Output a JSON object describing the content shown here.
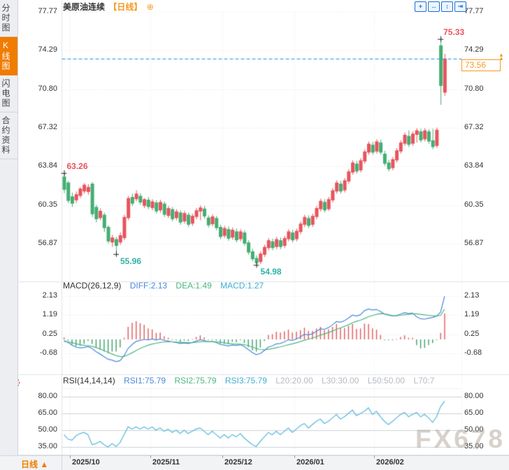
{
  "header": {
    "symbol": "美原油连续",
    "period_tag": "【日线】",
    "add_icon": "⊕"
  },
  "sidebar": {
    "tabs": [
      {
        "label": "分时图",
        "active": false
      },
      {
        "label": "K线图",
        "active": true
      },
      {
        "label": "闪电图",
        "active": false
      },
      {
        "label": "合约资料",
        "active": false
      }
    ]
  },
  "toolbar": {
    "buttons": [
      {
        "name": "pan",
        "glyph": "+"
      },
      {
        "name": "zoom-x",
        "glyph": "↔"
      },
      {
        "name": "zoom-y",
        "glyph": "↕"
      },
      {
        "name": "collapse-panel",
        "glyph": "⇥"
      }
    ]
  },
  "bottom_bar": {
    "period_label": "日线",
    "period_arrow": "▲"
  },
  "watermark": "FX678",
  "price_tag": {
    "value": "73.56",
    "arrows": "▲▲"
  },
  "macd_header": {
    "name": "MACD(26,12,9)",
    "diff": "DIFF:2.13",
    "dea": "DEA:1.49",
    "macd": "MACD:1.27"
  },
  "rsi_header": {
    "name": "RSI(14,14,14)",
    "rsi1": "RSI1:75.79",
    "rsi2": "RSI2:75.79",
    "rsi3": "RSI3:75.79",
    "l20": "L20:20.00",
    "l30": "L30:30.00",
    "l50": "L50:50.00",
    "l70": "L70:7"
  },
  "colors": {
    "up": "#e8545c",
    "down": "#43ae73",
    "accent_orange": "#f59a23",
    "diff_line": "#4a89dc",
    "dea_line": "#4cb581",
    "rsi_line": "#54b7dc",
    "price_line": "#2b8fe3",
    "grid": "#e3e6ea",
    "separator": "#dfe2e7",
    "hist_up": "#e05a5a",
    "hist_down": "#3ca06a",
    "ann_high": "#e8545c",
    "ann_low": "#2eb3a6"
  },
  "chart_data": [
    {
      "type": "candlestick",
      "title": "美原油连续 日线",
      "y_ticks": [
        "77.77",
        "74.29",
        "70.80",
        "67.32",
        "63.84",
        "60.35",
        "56.87"
      ],
      "y_tick_values": [
        77.77,
        74.29,
        70.8,
        67.32,
        63.84,
        60.35,
        56.87
      ],
      "x_ticks": [
        {
          "label": "2025/10",
          "idx": 2
        },
        {
          "label": "2025/11",
          "idx": 22
        },
        {
          "label": "2025/12",
          "idx": 40
        },
        {
          "label": "2026/01",
          "idx": 58
        },
        {
          "label": "2026/02",
          "idx": 78
        }
      ],
      "last_price": 73.56,
      "annotations": [
        {
          "text": "63.26",
          "idx": 0,
          "price": 63.26,
          "pos": "above-right",
          "color": "ann_high"
        },
        {
          "text": "75.33",
          "idx": 94,
          "price": 75.33,
          "pos": "above-right",
          "color": "ann_high"
        },
        {
          "text": "55.96",
          "idx": 13,
          "price": 55.96,
          "pos": "below-right",
          "color": "ann_low"
        },
        {
          "text": "54.98",
          "idx": 48,
          "price": 54.98,
          "pos": "below-right",
          "color": "ann_low"
        }
      ],
      "candles": [
        [
          62.95,
          63.26,
          61.45,
          61.75
        ],
        [
          62.4,
          62.55,
          60.55,
          60.75
        ],
        [
          61.15,
          61.5,
          60.2,
          60.5
        ],
        [
          60.8,
          61.6,
          60.55,
          61.35
        ],
        [
          61.2,
          62.0,
          61.0,
          61.85
        ],
        [
          61.6,
          62.35,
          61.4,
          62.2
        ],
        [
          61.55,
          62.25,
          61.3,
          62.0
        ],
        [
          62.3,
          62.45,
          59.3,
          59.55
        ],
        [
          60.2,
          60.4,
          58.8,
          59.1
        ],
        [
          59.2,
          60.05,
          59.0,
          59.85
        ],
        [
          59.5,
          59.7,
          57.95,
          58.3
        ],
        [
          58.4,
          58.55,
          56.9,
          57.1
        ],
        [
          57.0,
          57.7,
          56.6,
          57.45
        ],
        [
          57.3,
          57.5,
          55.96,
          56.7
        ],
        [
          57.0,
          57.9,
          56.8,
          57.65
        ],
        [
          57.4,
          59.5,
          57.2,
          59.3
        ],
        [
          59.2,
          61.2,
          59.0,
          61.0
        ],
        [
          61.1,
          61.4,
          60.3,
          60.5
        ],
        [
          60.9,
          61.7,
          60.7,
          61.4
        ],
        [
          61.2,
          61.45,
          60.4,
          60.6
        ],
        [
          60.3,
          61.0,
          60.1,
          60.9
        ],
        [
          60.85,
          61.1,
          60.0,
          60.2
        ],
        [
          60.1,
          60.9,
          59.9,
          60.7
        ],
        [
          60.6,
          60.8,
          59.6,
          59.8
        ],
        [
          59.9,
          60.85,
          59.7,
          60.65
        ],
        [
          60.5,
          60.7,
          59.3,
          59.5
        ],
        [
          59.4,
          60.3,
          59.2,
          60.1
        ],
        [
          60.0,
          60.2,
          58.9,
          59.1
        ],
        [
          59.2,
          60.0,
          59.0,
          59.8
        ],
        [
          59.7,
          59.9,
          58.6,
          58.8
        ],
        [
          58.9,
          59.85,
          58.7,
          59.65
        ],
        [
          59.5,
          59.7,
          58.4,
          58.6
        ],
        [
          58.7,
          59.6,
          58.5,
          59.4
        ],
        [
          59.3,
          60.1,
          59.1,
          59.9
        ],
        [
          59.8,
          60.35,
          59.0,
          60.15
        ],
        [
          60.05,
          60.3,
          59.15,
          59.35
        ],
        [
          59.25,
          59.45,
          58.35,
          58.55
        ],
        [
          58.65,
          59.55,
          58.45,
          59.35
        ],
        [
          59.2,
          59.4,
          58.1,
          58.3
        ],
        [
          58.4,
          58.6,
          57.3,
          57.5
        ],
        [
          57.6,
          58.5,
          57.4,
          58.3
        ],
        [
          58.2,
          58.45,
          57.15,
          57.35
        ],
        [
          57.45,
          58.35,
          57.25,
          58.15
        ],
        [
          58.0,
          58.25,
          57.0,
          57.2
        ],
        [
          57.3,
          58.2,
          57.1,
          58.0
        ],
        [
          57.9,
          58.1,
          56.7,
          56.9
        ],
        [
          57.0,
          57.2,
          55.9,
          56.1
        ],
        [
          56.2,
          56.45,
          55.3,
          55.5
        ],
        [
          55.6,
          55.85,
          54.98,
          55.15
        ],
        [
          55.25,
          56.2,
          55.05,
          56.0
        ],
        [
          55.9,
          56.8,
          55.7,
          56.6
        ],
        [
          56.5,
          57.4,
          56.3,
          57.2
        ],
        [
          57.1,
          57.35,
          56.3,
          56.5
        ],
        [
          56.6,
          57.5,
          56.4,
          57.3
        ],
        [
          57.2,
          57.45,
          56.4,
          56.6
        ],
        [
          56.7,
          57.6,
          56.5,
          57.4
        ],
        [
          57.3,
          58.2,
          57.1,
          58.0
        ],
        [
          57.9,
          58.15,
          57.0,
          57.2
        ],
        [
          57.3,
          58.25,
          57.1,
          58.05
        ],
        [
          57.95,
          58.9,
          57.75,
          58.7
        ],
        [
          58.6,
          59.5,
          58.4,
          59.3
        ],
        [
          59.2,
          59.45,
          58.3,
          58.5
        ],
        [
          58.6,
          59.6,
          58.4,
          59.4
        ],
        [
          59.3,
          60.3,
          59.1,
          60.1
        ],
        [
          60.0,
          60.95,
          59.8,
          60.75
        ],
        [
          60.65,
          60.9,
          59.7,
          59.9
        ],
        [
          60.0,
          61.1,
          59.85,
          60.9
        ],
        [
          60.8,
          61.9,
          60.6,
          61.7
        ],
        [
          61.6,
          62.6,
          61.4,
          62.4
        ],
        [
          62.3,
          62.55,
          61.4,
          61.6
        ],
        [
          61.7,
          62.8,
          61.5,
          62.6
        ],
        [
          62.5,
          63.6,
          62.3,
          63.4
        ],
        [
          63.3,
          64.4,
          63.1,
          64.2
        ],
        [
          64.1,
          64.35,
          63.2,
          63.4
        ],
        [
          63.5,
          64.6,
          63.3,
          64.4
        ],
        [
          64.3,
          65.4,
          64.1,
          65.2
        ],
        [
          65.1,
          66.1,
          64.9,
          65.9
        ],
        [
          65.8,
          66.05,
          64.9,
          65.1
        ],
        [
          65.2,
          66.3,
          65.0,
          66.1
        ],
        [
          66.0,
          66.25,
          64.9,
          65.1
        ],
        [
          65.0,
          65.25,
          63.9,
          64.1
        ],
        [
          64.2,
          64.45,
          63.4,
          63.6
        ],
        [
          63.7,
          64.7,
          63.5,
          64.5
        ],
        [
          64.4,
          65.5,
          64.2,
          65.3
        ],
        [
          65.2,
          66.2,
          65.0,
          66.0
        ],
        [
          65.9,
          66.9,
          65.7,
          66.7
        ],
        [
          66.6,
          67.1,
          65.6,
          65.8
        ],
        [
          65.9,
          67.0,
          65.7,
          66.8
        ],
        [
          66.7,
          67.3,
          66.0,
          67.1
        ],
        [
          67.0,
          67.25,
          66.0,
          66.2
        ],
        [
          66.3,
          67.3,
          66.1,
          67.1
        ],
        [
          67.0,
          67.2,
          65.9,
          66.1
        ],
        [
          66.2,
          67.25,
          65.4,
          65.6
        ],
        [
          65.7,
          67.35,
          65.5,
          67.15
        ],
        [
          74.75,
          75.33,
          69.4,
          71.1
        ],
        [
          70.5,
          74.0,
          70.2,
          73.56
        ]
      ]
    },
    {
      "type": "macd",
      "params": "26,12,9",
      "y_ticks": [
        "2.13",
        "1.19",
        "0.25",
        "-0.68"
      ],
      "y_tick_values": [
        2.13,
        1.19,
        0.25,
        -0.68
      ],
      "diff": [
        -0.05,
        -0.15,
        -0.28,
        -0.38,
        -0.42,
        -0.4,
        -0.35,
        -0.45,
        -0.6,
        -0.72,
        -0.85,
        -0.98,
        -1.02,
        -1.1,
        -1.05,
        -0.8,
        -0.45,
        -0.25,
        -0.1,
        -0.05,
        0.0,
        -0.02,
        0.02,
        -0.03,
        0.02,
        -0.05,
        -0.08,
        -0.12,
        -0.15,
        -0.2,
        -0.18,
        -0.2,
        -0.15,
        -0.08,
        -0.02,
        -0.05,
        -0.12,
        -0.1,
        -0.15,
        -0.25,
        -0.28,
        -0.32,
        -0.28,
        -0.3,
        -0.26,
        -0.35,
        -0.5,
        -0.65,
        -0.75,
        -0.7,
        -0.55,
        -0.38,
        -0.32,
        -0.22,
        -0.2,
        -0.12,
        -0.02,
        -0.05,
        0.02,
        0.12,
        0.25,
        0.22,
        0.28,
        0.4,
        0.52,
        0.5,
        0.58,
        0.72,
        0.88,
        0.85,
        0.92,
        1.05,
        1.2,
        1.15,
        1.22,
        1.42,
        1.5,
        1.45,
        1.48,
        1.38,
        1.25,
        1.2,
        1.16,
        1.18,
        1.25,
        1.32,
        1.28,
        1.3,
        1.12,
        1.02,
        1.0,
        1.05,
        1.08,
        1.15,
        1.35,
        2.13
      ],
      "dea": [
        -0.1,
        -0.12,
        -0.16,
        -0.21,
        -0.26,
        -0.29,
        -0.31,
        -0.34,
        -0.4,
        -0.47,
        -0.55,
        -0.64,
        -0.72,
        -0.8,
        -0.85,
        -0.84,
        -0.76,
        -0.66,
        -0.55,
        -0.45,
        -0.36,
        -0.29,
        -0.23,
        -0.19,
        -0.15,
        -0.13,
        -0.12,
        -0.12,
        -0.13,
        -0.14,
        -0.15,
        -0.16,
        -0.16,
        -0.14,
        -0.12,
        -0.1,
        -0.11,
        -0.11,
        -0.12,
        -0.14,
        -0.17,
        -0.2,
        -0.22,
        -0.23,
        -0.24,
        -0.26,
        -0.31,
        -0.38,
        -0.45,
        -0.5,
        -0.51,
        -0.49,
        -0.45,
        -0.41,
        -0.37,
        -0.32,
        -0.26,
        -0.22,
        -0.17,
        -0.11,
        -0.04,
        0.01,
        0.07,
        0.13,
        0.21,
        0.27,
        0.33,
        0.41,
        0.5,
        0.57,
        0.64,
        0.72,
        0.82,
        0.89,
        0.95,
        1.03,
        1.12,
        1.18,
        1.24,
        1.27,
        1.26,
        1.22,
        1.18,
        1.17,
        1.19,
        1.22,
        1.24,
        1.26,
        1.26,
        1.24,
        1.21,
        1.19,
        1.17,
        1.16,
        1.19,
        1.49
      ],
      "hist_rule": "2*(diff-dea)"
    },
    {
      "type": "rsi",
      "params": "14,14,14",
      "y_ticks": [
        "80.00",
        "65.00",
        "50.00",
        "35.00"
      ],
      "y_tick_values": [
        80,
        65,
        50,
        35
      ],
      "values": [
        46,
        42,
        41,
        45,
        47,
        48,
        46,
        37,
        38,
        40,
        37,
        35,
        38,
        35.5,
        39,
        46,
        53,
        51,
        53,
        51,
        53,
        51,
        53,
        50,
        52,
        49,
        51,
        48,
        50,
        47,
        50,
        47,
        49,
        51,
        52,
        49,
        46,
        49,
        46,
        43,
        46,
        43,
        46,
        44,
        47,
        43,
        40,
        37,
        35.5,
        40,
        44,
        48,
        46,
        49,
        46,
        49,
        52,
        48,
        51,
        54,
        56,
        52,
        55,
        58,
        60,
        56,
        58,
        61,
        64,
        60,
        62,
        65,
        68,
        63,
        65,
        67,
        70,
        64,
        67,
        62,
        58,
        55,
        58,
        61,
        64,
        66,
        62,
        64,
        66,
        62,
        64,
        61,
        57,
        62,
        71,
        76
      ]
    }
  ]
}
